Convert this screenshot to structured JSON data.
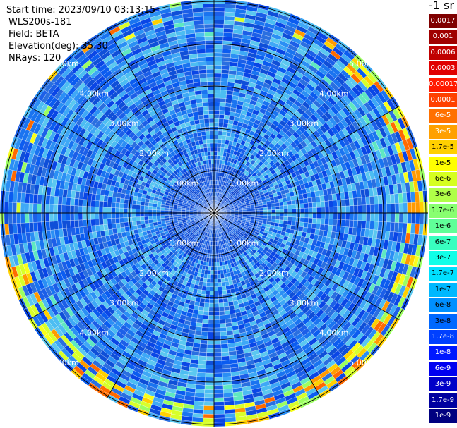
{
  "plot_info": {
    "start_time": "Start time: 2023/09/10 03:13:15",
    "instrument": "WLS200s-181",
    "field": "Field: BETA",
    "elevation": "Elevation(deg): 35.30",
    "nrays": "NRays: 120"
  },
  "units": "-1 sr",
  "range_ring_labels": [
    "1.00km",
    "2.00km",
    "3.00km",
    "4.00km",
    "5.00km"
  ],
  "legend": [
    {
      "label": "0.0017",
      "color": "#800000",
      "text_color": "#ffffff"
    },
    {
      "label": "0.001",
      "color": "#a00000",
      "text_color": "#ffffff"
    },
    {
      "label": "0.0006",
      "color": "#c00000",
      "text_color": "#ffffff"
    },
    {
      "label": "0.0003",
      "color": "#e00000",
      "text_color": "#ffffff"
    },
    {
      "label": "0.00017",
      "color": "#ff1a00",
      "text_color": "#ffffff"
    },
    {
      "label": "0.0001",
      "color": "#ff4000",
      "text_color": "#ffffff"
    },
    {
      "label": "6e-5",
      "color": "#ff7000",
      "text_color": "#ffffff"
    },
    {
      "label": "3e-5",
      "color": "#ffa000",
      "text_color": "#ffffff"
    },
    {
      "label": "1.7e-5",
      "color": "#ffd000",
      "text_color": "#000000"
    },
    {
      "label": "1e-5",
      "color": "#ffff00",
      "text_color": "#000000"
    },
    {
      "label": "6e-6",
      "color": "#d6ff20",
      "text_color": "#000000"
    },
    {
      "label": "3e-6",
      "color": "#b0ff48",
      "text_color": "#000000"
    },
    {
      "label": "1.7e-6",
      "color": "#88ff70",
      "text_color": "#000000"
    },
    {
      "label": "1e-6",
      "color": "#60ff98",
      "text_color": "#000000"
    },
    {
      "label": "6e-7",
      "color": "#38ffc0",
      "text_color": "#000000"
    },
    {
      "label": "3e-7",
      "color": "#10ffe8",
      "text_color": "#000000"
    },
    {
      "label": "1.7e-7",
      "color": "#00e0ff",
      "text_color": "#000000"
    },
    {
      "label": "1e-7",
      "color": "#00b8ff",
      "text_color": "#000000"
    },
    {
      "label": "6e-8",
      "color": "#0090ff",
      "text_color": "#000000"
    },
    {
      "label": "3e-8",
      "color": "#0068ff",
      "text_color": "#000000"
    },
    {
      "label": "1.7e-8",
      "color": "#0040ff",
      "text_color": "#ffffff"
    },
    {
      "label": "1e-8",
      "color": "#0018ff",
      "text_color": "#ffffff"
    },
    {
      "label": "6e-9",
      "color": "#0000f0",
      "text_color": "#ffffff"
    },
    {
      "label": "3e-9",
      "color": "#0000c8",
      "text_color": "#ffffff"
    },
    {
      "label": "1.7e-9",
      "color": "#0000a0",
      "text_color": "#ffffff"
    },
    {
      "label": "1e-9",
      "color": "#000080",
      "text_color": "#ffffff"
    }
  ]
}
